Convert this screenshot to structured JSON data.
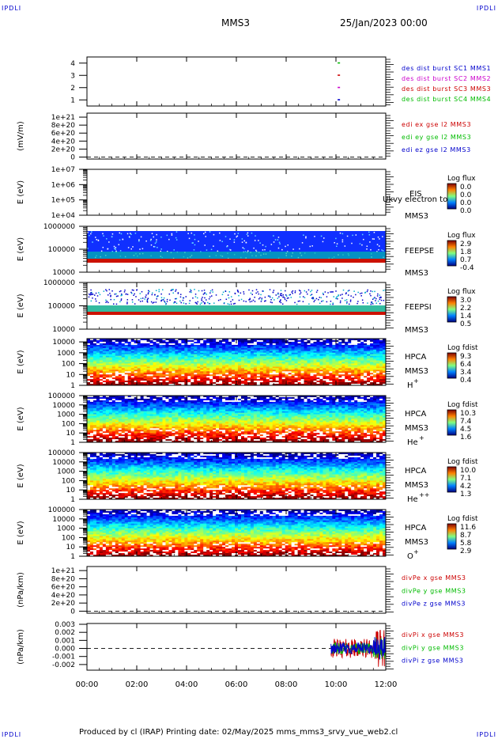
{
  "header": {
    "corner_left_top": "IPDLI",
    "corner_right_top": "IPDLI",
    "corner_left_bottom": "IPDLI",
    "corner_right_bottom": "IPDLI",
    "spacecraft": "MMS3",
    "date": "25/Jan/2023 00:00"
  },
  "footer": {
    "text": "Produced by cl (IRAP)   Printing date: 02/May/2025   mms_mms3_srvy_vue_web2.cl"
  },
  "colors": {
    "blue": "#0000cc",
    "magenta": "#cc00cc",
    "red": "#cc0000",
    "green": "#00bb00",
    "spec_bg": "#1030ff"
  },
  "chart_data": [
    {
      "type": "scatter",
      "panel": "burst",
      "yticks": [
        "1",
        "2",
        "3",
        "4"
      ],
      "ylim": [
        0.5,
        4.5
      ],
      "legend": [
        {
          "text": "des dist burst SC1 MMS1",
          "color": "#0000cc"
        },
        {
          "text": "des dist burst SC2 MMS2",
          "color": "#cc00cc"
        },
        {
          "text": "des dist burst SC3 MMS3",
          "color": "#cc0000"
        },
        {
          "text": "des dist burst SC4 MMS4",
          "color": "#00bb00"
        }
      ],
      "series": [
        {
          "name": "des dist burst SC1 MMS1",
          "x": [
            10.1
          ],
          "y": [
            1
          ]
        },
        {
          "name": "des dist burst SC2 MMS2",
          "x": [
            10.1
          ],
          "y": [
            2
          ]
        },
        {
          "name": "des dist burst SC3 MMS3",
          "x": [
            10.1
          ],
          "y": [
            3
          ]
        },
        {
          "name": "des dist burst SC4 MMS4",
          "x": [
            10.1
          ],
          "y": [
            4
          ]
        }
      ]
    },
    {
      "type": "line",
      "panel": "edi",
      "ylabel": "(mV/m)",
      "yticks": [
        "0",
        "2e+20",
        "4e+20",
        "6e+20",
        "8e+20",
        "1e+21"
      ],
      "ylim": [
        -5e+19,
        1.1e+21
      ],
      "zero_line": true,
      "legend": [
        {
          "text": "edi ex gse l2 MMS3",
          "color": "#cc0000"
        },
        {
          "text": "edi ey gse l2 MMS3",
          "color": "#00bb00"
        },
        {
          "text": "edi ez gse l2 MMS3",
          "color": "#0000cc"
        }
      ]
    },
    {
      "type": "heatmap",
      "panel": "eis",
      "ylabel": "E (eV)",
      "yticks": [
        "1e+04",
        "1e+05",
        "1e+06",
        "1e+07"
      ],
      "ylog": [
        4,
        7
      ],
      "instrument": "EIS",
      "sc": "MMS3",
      "overlay": "Ukvy electron to",
      "cb_title": "Log flux",
      "cb_ticks": [
        "0.0",
        "0.0",
        "0.0",
        "0.0"
      ],
      "empty": true
    },
    {
      "type": "heatmap",
      "panel": "feepse",
      "ylabel": "E (eV)",
      "yticks": [
        "10000",
        "100000",
        "1000000"
      ],
      "ylog": [
        4,
        6
      ],
      "instrument": "FEEPSE",
      "sc": "MMS3",
      "cb_title": "Log flux",
      "cb_ticks": [
        "2.9",
        "1.8",
        "0.7",
        "-0.4"
      ],
      "profile": "feepse"
    },
    {
      "type": "heatmap",
      "panel": "feepsi",
      "ylabel": "E (eV)",
      "yticks": [
        "10000",
        "100000",
        "1000000"
      ],
      "ylog": [
        4,
        6
      ],
      "instrument": "FEEPSI",
      "sc": "MMS3",
      "cb_title": "Log flux",
      "cb_ticks": [
        "3.0",
        "2.2",
        "1.4",
        "0.5"
      ],
      "profile": "feepsi"
    },
    {
      "type": "heatmap",
      "panel": "hpca_h",
      "ylabel": "E (eV)",
      "yticks": [
        "1",
        "10",
        "100",
        "1000",
        "10000"
      ],
      "ylog": [
        0,
        4.3
      ],
      "instrument": "HPCA",
      "sc": "MMS3",
      "species": "H",
      "charge": "+",
      "cb_title": "Log fdist",
      "cb_ticks": [
        "9.3",
        "6.4",
        "3.4",
        "0.4"
      ],
      "profile": "hpca"
    },
    {
      "type": "heatmap",
      "panel": "hpca_he1",
      "ylabel": "E (eV)",
      "yticks": [
        "1",
        "10",
        "100",
        "1000",
        "10000",
        "100000"
      ],
      "ylog": [
        0,
        5
      ],
      "instrument": "HPCA",
      "sc": "MMS3",
      "species": "He",
      "charge": "+",
      "cb_title": "Log fdist",
      "cb_ticks": [
        "10.3",
        "7.4",
        "4.5",
        "1.6"
      ],
      "profile": "hpca"
    },
    {
      "type": "heatmap",
      "panel": "hpca_he2",
      "ylabel": "E (eV)",
      "yticks": [
        "1",
        "10",
        "100",
        "1000",
        "10000",
        "100000"
      ],
      "ylog": [
        0,
        5
      ],
      "instrument": "HPCA",
      "sc": "MMS3",
      "species": "He",
      "charge": "++",
      "cb_title": "Log fdist",
      "cb_ticks": [
        "10.0",
        "7.1",
        "4.2",
        "1.3"
      ],
      "profile": "hpca"
    },
    {
      "type": "heatmap",
      "panel": "hpca_o",
      "ylabel": "E (eV)",
      "yticks": [
        "1",
        "10",
        "100",
        "1000",
        "10000",
        "100000"
      ],
      "ylog": [
        0,
        5
      ],
      "instrument": "HPCA",
      "sc": "MMS3",
      "species": "O",
      "charge": "+",
      "cb_title": "Log fdist",
      "cb_ticks": [
        "11.6",
        "8.7",
        "5.8",
        "2.9"
      ],
      "profile": "hpca"
    },
    {
      "type": "line",
      "panel": "divpe",
      "ylabel": "(nPa/km)",
      "yticks": [
        "0",
        "2e+20",
        "4e+20",
        "6e+20",
        "8e+20",
        "1e+21"
      ],
      "ylim": [
        -5e+19,
        1.1e+21
      ],
      "zero_line": true,
      "legend": [
        {
          "text": "divPe x gse MMS3",
          "color": "#cc0000"
        },
        {
          "text": "divPe y gse MMS3",
          "color": "#00bb00"
        },
        {
          "text": "divPe z gse MMS3",
          "color": "#0000cc"
        }
      ]
    },
    {
      "type": "line",
      "panel": "divpi",
      "ylabel": "(nPa/km)",
      "yticks": [
        "-0.002",
        "-0.001",
        "0.000",
        "0.001",
        "0.002",
        "0.003"
      ],
      "ylim": [
        -0.0027,
        0.0031
      ],
      "zero_line": true,
      "data_start": 9.8,
      "legend": [
        {
          "text": "divPi x gse MMS3",
          "color": "#cc0000"
        },
        {
          "text": "divPi y gse MMS3",
          "color": "#00bb00"
        },
        {
          "text": "divPi z gse MMS3",
          "color": "#0000cc"
        }
      ]
    }
  ],
  "time_axis": {
    "range_hours": [
      0,
      12
    ],
    "labels": [
      "00:00",
      "02:00",
      "04:00",
      "06:00",
      "08:00",
      "10:00",
      "12:00"
    ],
    "label_hours": [
      0,
      2,
      4,
      6,
      8,
      10,
      12
    ]
  }
}
